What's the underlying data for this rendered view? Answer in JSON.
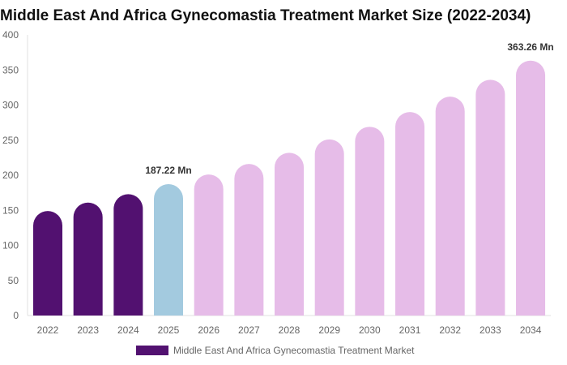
{
  "chart_data": {
    "type": "bar",
    "title": "Middle East And Africa Gynecomastia Treatment Market Size (2022-2034)",
    "categories": [
      "2022",
      "2023",
      "2024",
      "2025",
      "2026",
      "2027",
      "2028",
      "2029",
      "2030",
      "2031",
      "2032",
      "2033",
      "2034"
    ],
    "series": [
      {
        "name": "Middle East And Africa Gynecomastia Treatment Market",
        "values": [
          149,
          161,
          173,
          187.22,
          201,
          216,
          232,
          251,
          269,
          290,
          312,
          336,
          363.26
        ]
      }
    ],
    "bar_colors": [
      "#521170",
      "#521170",
      "#521170",
      "#a3cadf",
      "#e6bce8",
      "#e6bce8",
      "#e6bce8",
      "#e6bce8",
      "#e6bce8",
      "#e6bce8",
      "#e6bce8",
      "#e6bce8",
      "#e6bce8"
    ],
    "data_labels": [
      {
        "index": 3,
        "text": "187.22 Mn"
      },
      {
        "index": 12,
        "text": "363.26 Mn"
      }
    ],
    "yticks": [
      0,
      50,
      100,
      150,
      200,
      250,
      300,
      350,
      400
    ],
    "ylim": [
      0,
      400
    ],
    "xlabel": "",
    "ylabel": "",
    "grid": false,
    "legend_position": "bottom"
  }
}
